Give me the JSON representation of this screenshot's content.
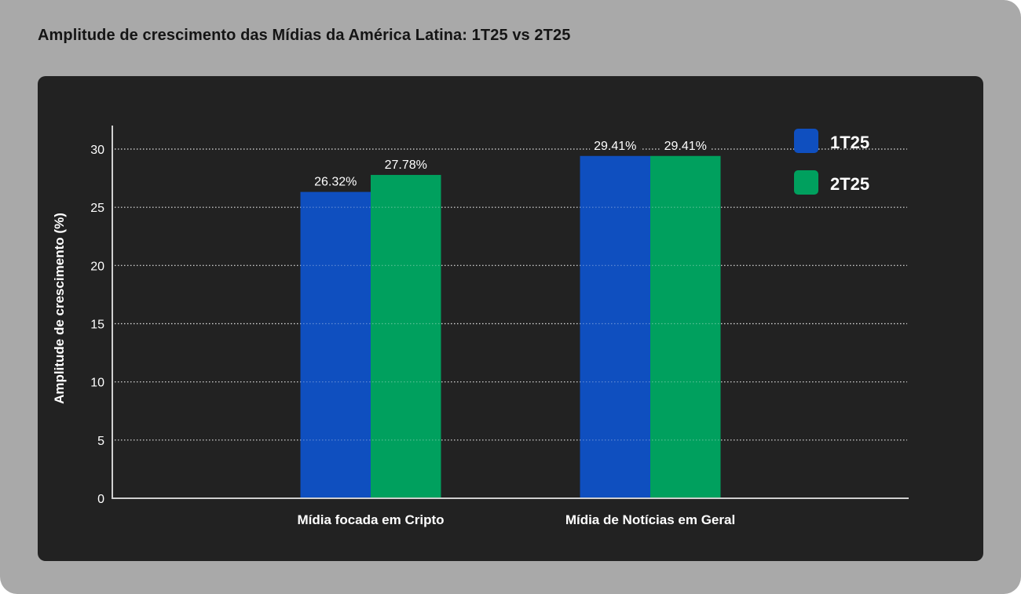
{
  "page": {
    "title": "Amplitude de crescimento das Mídias da América Latina: 1T25 vs 2T25"
  },
  "colors": {
    "background": "#a9a9a9",
    "panel": "#222222",
    "series_1T25": "#0f4fbf",
    "series_2T25": "#00a05e",
    "grid": "#c8c8c8",
    "axis": "#d0d0d0",
    "text": "#ffffff"
  },
  "chart_data": {
    "type": "bar",
    "title": "Amplitude de crescimento das Mídias da América Latina: 1T25 vs 2T25",
    "xlabel": "",
    "ylabel": "Amplitude de crescimento (%)",
    "categories": [
      "Mídia focada em Cripto",
      "Mídia de Notícias em Geral"
    ],
    "series": [
      {
        "name": "1T25",
        "values": [
          26.32,
          29.41
        ],
        "labels": [
          "26.32%",
          "29.41%"
        ]
      },
      {
        "name": "2T25",
        "values": [
          27.78,
          29.41
        ],
        "labels": [
          "27.78%",
          "29.41%"
        ]
      }
    ],
    "ylim": [
      0,
      32
    ],
    "yticks": [
      0,
      5,
      10,
      15,
      20,
      25,
      30
    ],
    "ytick_labels": [
      "0",
      "5",
      "10",
      "15",
      "20",
      "25",
      "30"
    ],
    "grid": true,
    "grid_style": "dotted",
    "legend": {
      "position": "top-right",
      "entries": [
        "1T25",
        "2T25"
      ]
    }
  }
}
